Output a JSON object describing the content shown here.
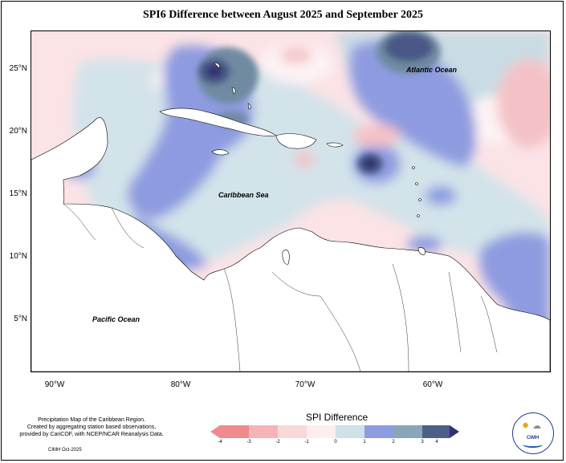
{
  "title": "SPI6 Difference between August 2025 and September 2025",
  "axes": {
    "y_ticks": [
      "25°N",
      "20°N",
      "15°N",
      "10°N",
      "5°N"
    ],
    "x_ticks": [
      "90°W",
      "80°W",
      "70°W",
      "60°W"
    ]
  },
  "map_labels": {
    "atlantic": "Atlantic Ocean",
    "caribbean": "Caribbean Sea",
    "pacific": "Pacific Ocean"
  },
  "legend": {
    "title": "SPI Difference",
    "ticks": [
      "-4",
      "-3",
      "-2",
      "-1",
      "0",
      "1",
      "2",
      "3",
      "4"
    ],
    "colors": [
      "#f08a8e",
      "#f4b5b9",
      "#f9d8da",
      "#fdeef0",
      "#cfe0e7",
      "#8f9be0",
      "#8aa7b8",
      "#4d5f89",
      "#2e3270"
    ]
  },
  "credits": {
    "line1": "Precipitation Map of the Caribbean Region.",
    "line2": "Created by aggregating station based observations,",
    "line3": "provided by CariCOF, with NCEP/NCAR Reanalysis Data.",
    "date": "CIMH Oct-2025"
  },
  "logo": {
    "text": "CIMH",
    "icon": "cimh-logo"
  }
}
